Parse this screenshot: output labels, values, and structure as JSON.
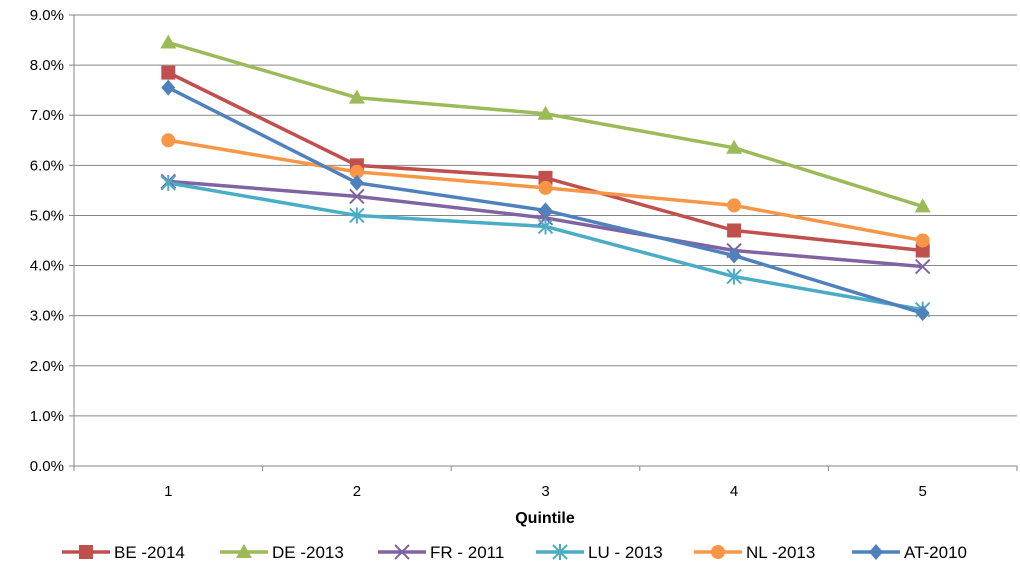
{
  "chart_data": {
    "type": "line",
    "xlabel": "Quintile",
    "ylabel": "",
    "categories": [
      "1",
      "2",
      "3",
      "4",
      "5"
    ],
    "ylim": [
      0,
      9
    ],
    "yticks": [
      "0.0%",
      "1.0%",
      "2.0%",
      "3.0%",
      "4.0%",
      "5.0%",
      "6.0%",
      "7.0%",
      "8.0%",
      "9.0%"
    ],
    "grid": "horizontal",
    "legend_position": "bottom",
    "series": [
      {
        "name": "BE -2014",
        "color": "#C0504D",
        "marker": "square",
        "values": [
          7.85,
          6.0,
          5.75,
          4.7,
          4.3
        ]
      },
      {
        "name": "DE -2013",
        "color": "#9BBB59",
        "marker": "triangle",
        "values": [
          8.45,
          7.35,
          7.03,
          6.35,
          5.18
        ]
      },
      {
        "name": "FR - 2011",
        "color": "#8064A2",
        "marker": "x",
        "values": [
          5.68,
          5.38,
          4.95,
          4.3,
          3.98
        ]
      },
      {
        "name": "LU - 2013",
        "color": "#4BACC6",
        "marker": "star",
        "values": [
          5.65,
          5.0,
          4.78,
          3.78,
          3.12
        ]
      },
      {
        "name": "NL -2013",
        "color": "#F79646",
        "marker": "circle",
        "values": [
          6.5,
          5.87,
          5.55,
          5.2,
          4.5
        ]
      },
      {
        "name": "AT-2010",
        "color": "#4F81BD",
        "marker": "diamond",
        "values": [
          7.55,
          5.65,
          5.1,
          4.2,
          3.05
        ]
      }
    ]
  }
}
